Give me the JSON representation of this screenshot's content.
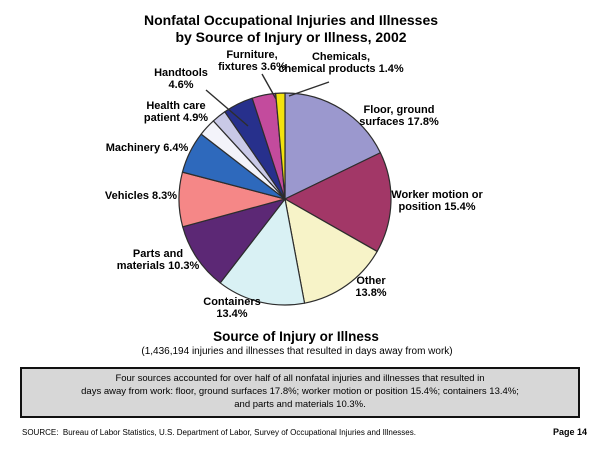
{
  "page": {
    "title_line1": "Nonfatal Occupational Injuries and Illnesses",
    "title_line2": "by Source of Injury or Illness, 2002",
    "axis_title": "Source of Injury or Illness",
    "axis_subtitle": "(1,436,194 injuries and illnesses that resulted in days away from work)",
    "note_lines": [
      "Four sources accounted for over half of all nonfatal injuries and illnesses that resulted in",
      "days away from work: floor, ground surfaces 17.8%; worker motion or position 15.4%; containers 13.4%;",
      "and parts and materials 10.3%."
    ],
    "source_text": "SOURCE:  Bureau of Labor Statistics, U.S. Department of Labor, Survey of Occupational Injuries and Illnesses.",
    "page_number": "Page 14"
  },
  "chart_data": {
    "type": "pie",
    "title": "Nonfatal Occupational Injuries and Illnesses by Source of Injury or Illness, 2002",
    "subtitle": "Source of Injury or Illness",
    "total_note": "(1,436,194 injuries and illnesses that resulted in days away from work)",
    "unit": "percent",
    "start_angle_deg": 0,
    "direction": "clockwise",
    "legend": false,
    "label_position": "outside",
    "outline_color": "#2d2d2d",
    "slices": [
      {
        "id": "floor",
        "label": "Floor, ground surfaces",
        "value": 17.8,
        "color": "#9B98CE",
        "display": [
          "Floor, ground",
          "surfaces 17.8%"
        ]
      },
      {
        "id": "worker-motion",
        "label": "Worker motion or position",
        "value": 15.4,
        "color": "#A23767",
        "display": [
          "Worker motion or",
          "position 15.4%"
        ]
      },
      {
        "id": "other",
        "label": "Other",
        "value": 13.8,
        "color": "#F7F3C8",
        "display": [
          "Other",
          "13.8%"
        ]
      },
      {
        "id": "containers",
        "label": "Containers",
        "value": 13.4,
        "color": "#D9F1F4",
        "display": [
          "Containers",
          "13.4%"
        ]
      },
      {
        "id": "parts-materials",
        "label": "Parts and materials",
        "value": 10.3,
        "color": "#5C2875",
        "display": [
          "Parts and",
          "materials 10.3%"
        ]
      },
      {
        "id": "vehicles",
        "label": "Vehicles",
        "value": 8.3,
        "color": "#F58787",
        "display": [
          "Vehicles 8.3%"
        ]
      },
      {
        "id": "machinery",
        "label": "Machinery",
        "value": 6.4,
        "color": "#2E69BC",
        "display": [
          "Machinery 6.4%"
        ]
      },
      {
        "id": "health-care-patient",
        "label": "Health care patient",
        "value": 4.9,
        "color": "#C9C9E7",
        "display": [
          "Health care",
          "patient 4.9%"
        ]
      },
      {
        "id": "handtools",
        "label": "Handtools",
        "value": 4.6,
        "color": "#27308C",
        "display": [
          "Handtools",
          "4.6%"
        ]
      },
      {
        "id": "furniture-fixtures",
        "label": "Furniture, fixtures",
        "value": 3.6,
        "color": "#C34B9D",
        "display": [
          "Furniture,",
          "fixtures 3.6%"
        ]
      },
      {
        "id": "chemicals",
        "label": "Chemicals, chemical products",
        "value": 1.4,
        "color": "#F2E20E",
        "display": [
          "Chemicals,",
          "chemical products 1.4%"
        ]
      }
    ]
  }
}
